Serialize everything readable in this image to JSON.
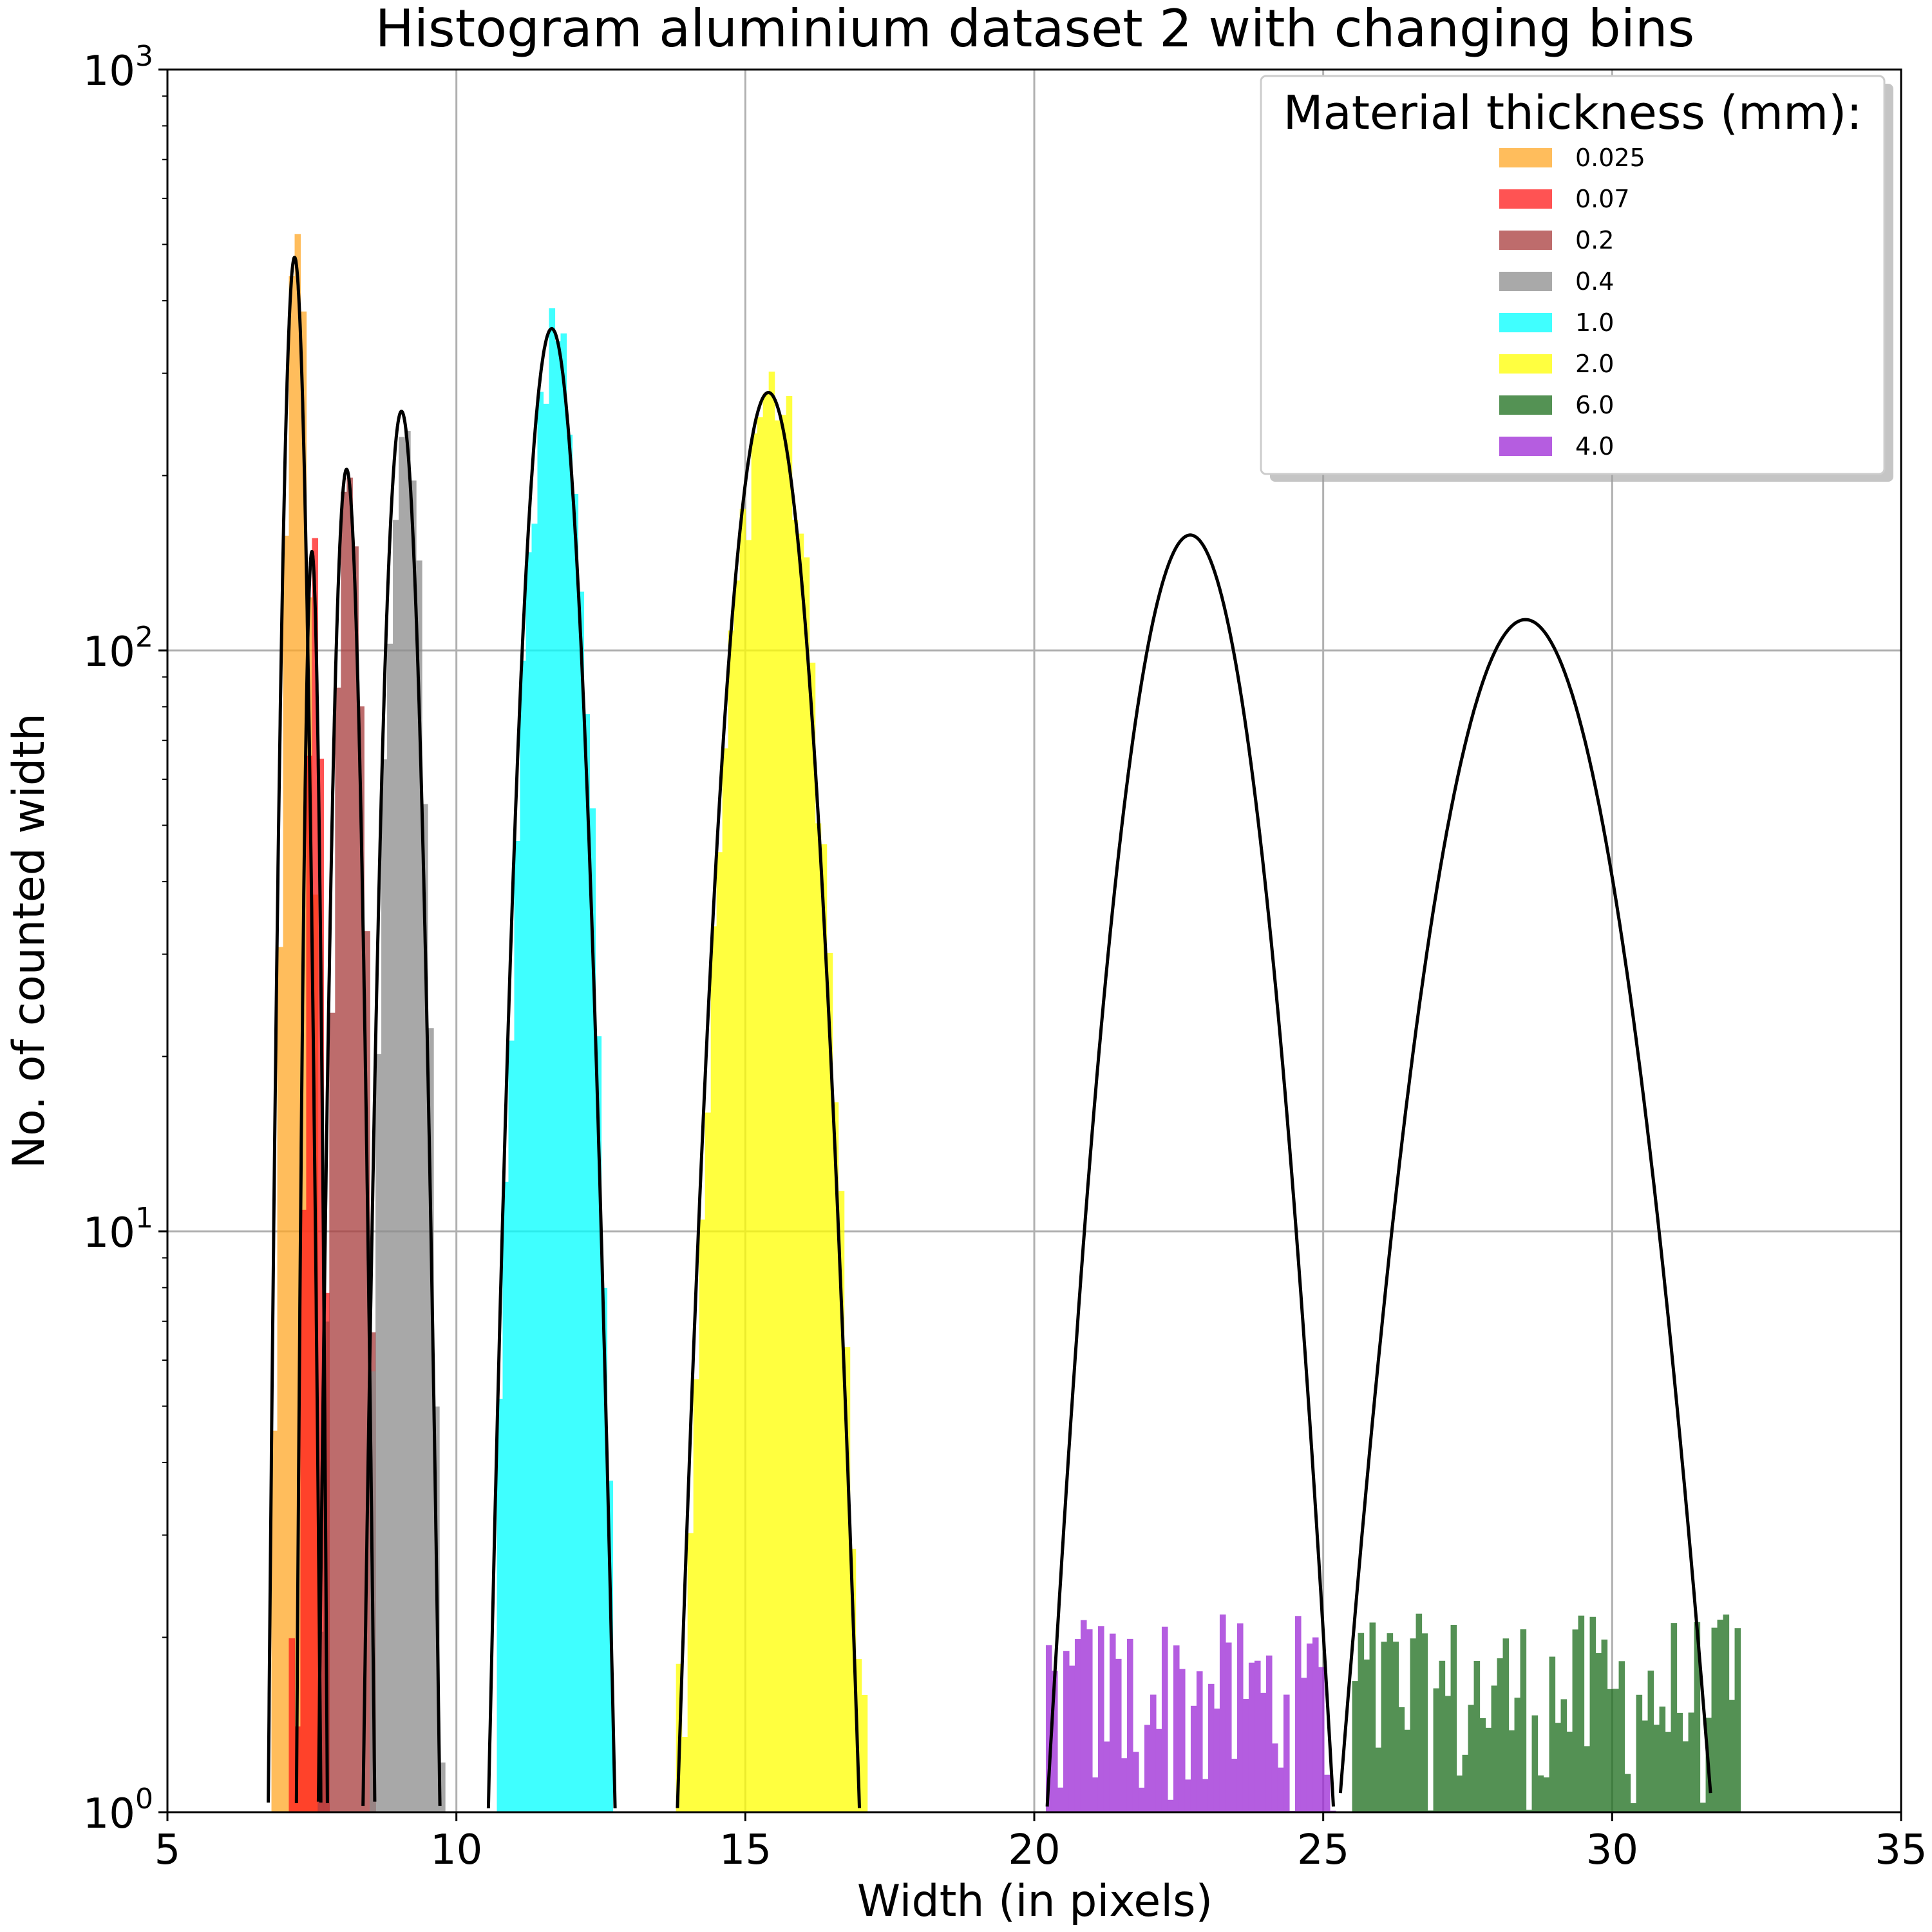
{
  "chart_data": {
    "type": "bar",
    "title": "Histogram aluminium dataset 2 with changing bins",
    "xlabel": "Width (in pixels)",
    "ylabel": "No. of counted width",
    "xlim": [
      5,
      35
    ],
    "ylim": [
      1,
      1000
    ],
    "yscale": "log",
    "grid": true,
    "x_ticks": [
      5,
      10,
      15,
      20,
      25,
      30,
      35
    ],
    "x_tick_labels": [
      "5",
      "10",
      "15",
      "20",
      "25",
      "30",
      "35"
    ],
    "y_ticks": [
      1,
      10,
      100,
      1000
    ],
    "y_tick_labels": [
      {
        "base": "10",
        "exp": "0"
      },
      {
        "base": "10",
        "exp": "1"
      },
      {
        "base": "10",
        "exp": "2"
      },
      {
        "base": "10",
        "exp": "3"
      }
    ],
    "legend": {
      "title": "Material thickness (mm):",
      "placement": "top-right",
      "entries": [
        "0.025",
        "0.07",
        "0.2",
        "0.4",
        "1.0",
        "2.0",
        "6.0",
        "4.0"
      ]
    },
    "series": [
      {
        "name": "0.025",
        "color": "#ffa726",
        "peak_x": 7.2,
        "peak_count": 480,
        "x_range": [
          6.8,
          7.6
        ]
      },
      {
        "name": "0.07",
        "color": "#ff1a1a",
        "peak_x": 7.5,
        "peak_count": 150,
        "x_range": [
          7.1,
          7.8
        ]
      },
      {
        "name": "0.2",
        "color": "#a83b3b",
        "peak_x": 8.1,
        "peak_count": 210,
        "x_range": [
          7.6,
          8.6
        ]
      },
      {
        "name": "0.4",
        "color": "#8c8c8c",
        "peak_x": 9.1,
        "peak_count": 260,
        "x_range": [
          8.5,
          9.8
        ]
      },
      {
        "name": "1.0",
        "color": "#00ffff",
        "peak_x": 11.65,
        "peak_count": 360,
        "x_range": [
          10.7,
          12.7
        ]
      },
      {
        "name": "2.0",
        "color": "#ffff00",
        "peak_x": 15.4,
        "peak_count": 280,
        "x_range": [
          13.8,
          17.1
        ]
      },
      {
        "name": "6.0",
        "color": "#1b6d1b",
        "peak_x": 28.5,
        "peak_count": 115,
        "x_range": [
          25.5,
          32.2
        ]
      },
      {
        "name": "4.0",
        "color": "#9c27d6",
        "peak_x": 22.7,
        "peak_count": 160,
        "x_range": [
          20.2,
          25.2
        ]
      }
    ],
    "fits": [
      {
        "mu": 7.2,
        "sigma": 0.13,
        "amp": 475
      },
      {
        "mu": 7.5,
        "sigma": 0.085,
        "amp": 148
      },
      {
        "mu": 8.1,
        "sigma": 0.15,
        "amp": 205
      },
      {
        "mu": 9.05,
        "sigma": 0.2,
        "amp": 258
      },
      {
        "mu": 11.65,
        "sigma": 0.32,
        "amp": 358
      },
      {
        "mu": 15.4,
        "sigma": 0.47,
        "amp": 278
      },
      {
        "mu": 22.7,
        "sigma": 0.78,
        "amp": 158
      },
      {
        "mu": 28.5,
        "sigma": 1.05,
        "amp": 113
      }
    ]
  }
}
